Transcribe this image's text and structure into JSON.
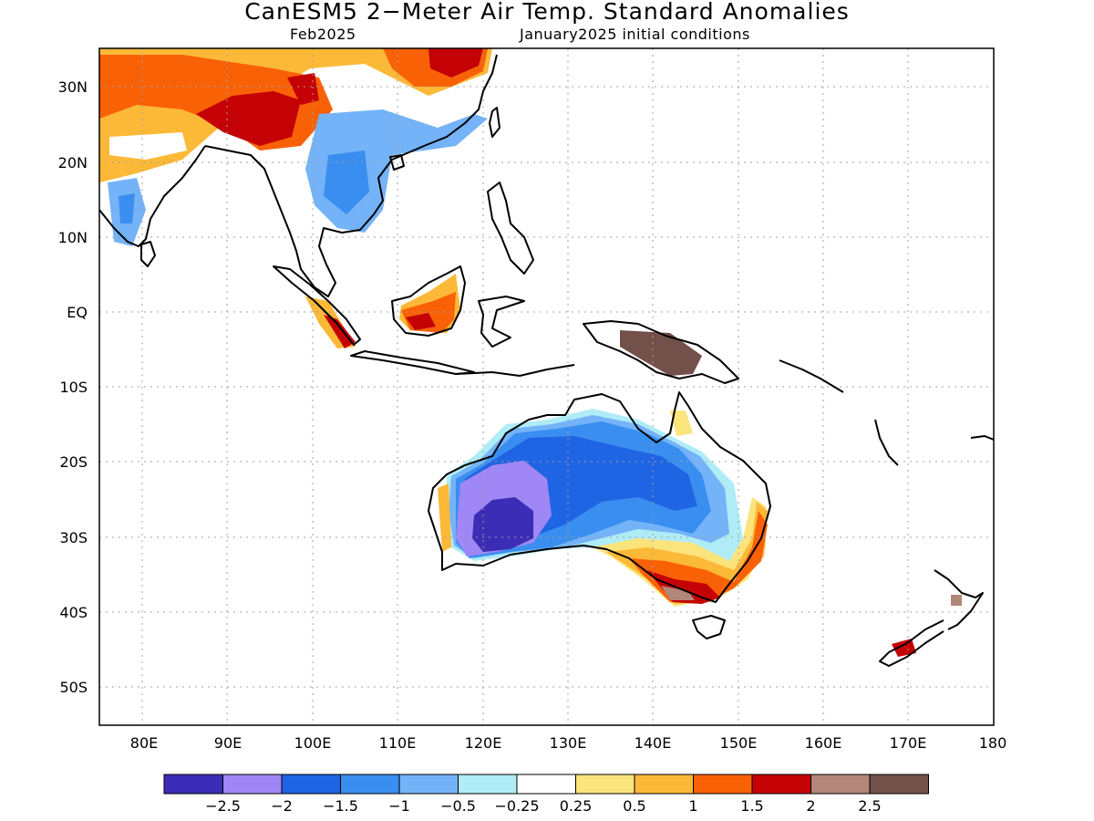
{
  "title": "CanESM5 2−Meter Air Temp. Standard Anomalies",
  "subtitle_left": "Feb2025",
  "subtitle_right": "January2025 initial conditions",
  "lat_labels": [
    "30N",
    "20N",
    "10N",
    "EQ",
    "10S",
    "20S",
    "30S",
    "40S",
    "50S"
  ],
  "lon_labels": [
    "80E",
    "90E",
    "100E",
    "110E",
    "120E",
    "130E",
    "140E",
    "150E",
    "160E",
    "170E",
    "180"
  ],
  "colorbar": {
    "colors": [
      "#3b2db5",
      "#9f87f5",
      "#1f64e3",
      "#3a8ef0",
      "#74b3f7",
      "#b0ecf6",
      "#ffffff",
      "#fce47c",
      "#fbb937",
      "#f96106",
      "#c40104",
      "#b28679",
      "#74504a"
    ],
    "labels": [
      "−2.5",
      "−2",
      "−1.5",
      "−1",
      "−0.5",
      "−0.25",
      "0.25",
      "0.5",
      "1",
      "1.5",
      "2",
      "2.5"
    ]
  },
  "palette": {
    "deep_purple": "#3b2db5",
    "lavender": "#9f87f5",
    "blue_dark": "#1f64e3",
    "blue": "#3a8ef0",
    "blue_light": "#74b3f7",
    "cyan": "#b0ecf6",
    "yellow": "#fce47c",
    "orange_light": "#fbb937",
    "orange": "#f96106",
    "red": "#c40104",
    "brown_light": "#b28679",
    "brown": "#74504a"
  }
}
